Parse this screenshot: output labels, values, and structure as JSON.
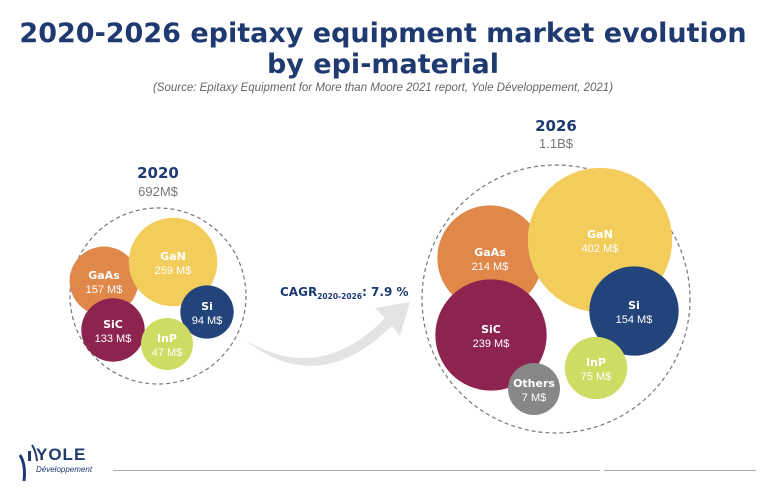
{
  "header": {
    "title_line1": "2020-2026 epitaxy equipment market evolution",
    "title_line2": "by epi-material",
    "source": "(Source: Epitaxy Equipment for More than Moore 2021 report, Yole Développement, 2021)"
  },
  "cagr": {
    "label": "CAGR",
    "sub": "2020-2026",
    "value": ": 7.9 %"
  },
  "logo": {
    "name": "YOLE",
    "sub": "Développement"
  },
  "chart_data": {
    "type": "bubble",
    "title": "2020-2026 epitaxy equipment market evolution by epi-material",
    "unit": "M$",
    "groups": [
      {
        "year": "2020",
        "total": "692M$",
        "items": [
          {
            "name": "GaAs",
            "value": 157,
            "label": "157 M$",
            "color": "#df884a"
          },
          {
            "name": "GaN",
            "value": 259,
            "label": "259 M$",
            "color": "#f2cd5b"
          },
          {
            "name": "Si",
            "value": 94,
            "label": "94 M$",
            "color": "#23447a"
          },
          {
            "name": "SiC",
            "value": 133,
            "label": "133 M$",
            "color": "#8d2450"
          },
          {
            "name": "InP",
            "value": 47,
            "label": "47 M$",
            "color": "#cedc63"
          }
        ]
      },
      {
        "year": "2026",
        "total": "1.1B$",
        "items": [
          {
            "name": "GaAs",
            "value": 214,
            "label": "214 M$",
            "color": "#df884a"
          },
          {
            "name": "GaN",
            "value": 402,
            "label": "402 M$",
            "color": "#f2cd5b"
          },
          {
            "name": "Si",
            "value": 154,
            "label": "154 M$",
            "color": "#23447a"
          },
          {
            "name": "SiC",
            "value": 239,
            "label": "239 M$",
            "color": "#8d2450"
          },
          {
            "name": "InP",
            "value": 75,
            "label": "75 M$",
            "color": "#cedc63"
          },
          {
            "name": "Others",
            "value": 7,
            "label": "7 M$",
            "color": "#878787"
          }
        ]
      }
    ]
  }
}
